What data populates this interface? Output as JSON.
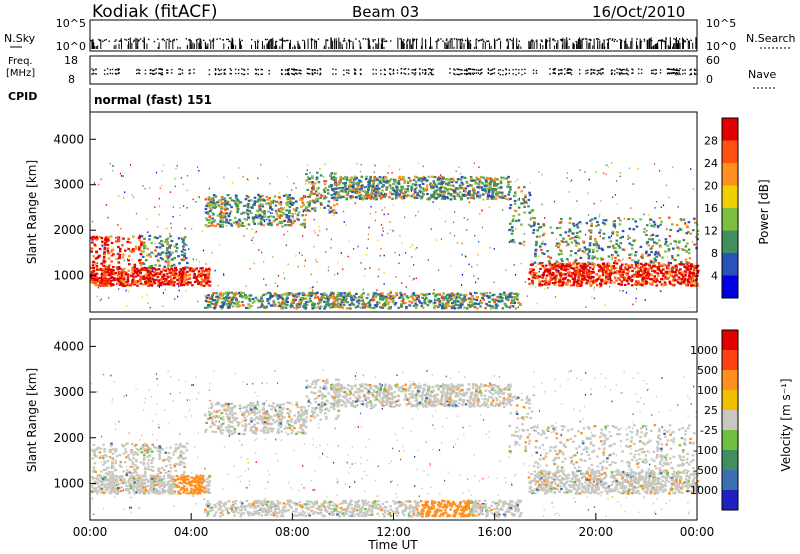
{
  "header": {
    "station": "Kodiak (fitACF)",
    "beam": "Beam 03",
    "date": "16/Oct/2010"
  },
  "top_panels": {
    "nsky": {
      "label": "N.Sky",
      "right_label": "N.Search",
      "ticks_left": [
        "10^5",
        "10^0"
      ],
      "ticks_right": [
        "10^5",
        "10^0"
      ]
    },
    "freq": {
      "label_line1": "Freq.",
      "label_line2": "[MHz]",
      "ticks_left": [
        "18",
        "8"
      ],
      "right_label": "Nave",
      "ticks_right": [
        "60",
        "0"
      ]
    },
    "cpid": {
      "label": "CPID",
      "text": "normal (fast) 151"
    }
  },
  "x_axis": {
    "label": "Time UT",
    "ticks": [
      "00:00",
      "04:00",
      "08:00",
      "12:00",
      "16:00",
      "20:00",
      "00:00"
    ]
  },
  "chart_data": [
    {
      "type": "heatmap",
      "quantity": "Power",
      "ylabel": "Slant Range [km]",
      "y_ticks": [
        "1000",
        "2000",
        "3000",
        "4000"
      ],
      "ylim": [
        200,
        4600
      ],
      "xlim": [
        0,
        24
      ],
      "colorbar": {
        "label": "Power [dB]",
        "ticks": [
          "4",
          "8",
          "12",
          "16",
          "20",
          "24",
          "28"
        ],
        "colors": [
          "#0000e0",
          "#2a52b8",
          "#3f8f60",
          "#7fbf3f",
          "#f0d000",
          "#ff9020",
          "#ff5010",
          "#e00000"
        ]
      },
      "bands": [
        {
          "name": "near-range echoes morning",
          "x": [
            0,
            4.5
          ],
          "y": [
            800,
            1800
          ],
          "level": 28
        },
        {
          "name": "far band",
          "x": [
            4.5,
            16.5
          ],
          "y": [
            2200,
            3200
          ],
          "level": 18
        },
        {
          "name": "evening echoes",
          "x": [
            17.2,
            24
          ],
          "y": [
            800,
            1800
          ],
          "level": 28
        },
        {
          "name": "ground scatter low",
          "x": [
            4.5,
            17
          ],
          "y": [
            300,
            650
          ],
          "level": 12
        }
      ]
    },
    {
      "type": "heatmap",
      "quantity": "Velocity",
      "ylabel": "Slant Range [km]",
      "y_ticks": [
        "1000",
        "2000",
        "3000",
        "4000"
      ],
      "ylim": [
        200,
        4600
      ],
      "xlim": [
        0,
        24
      ],
      "colorbar": {
        "label": "Velocity [m s⁻¹]",
        "ticks": [
          "1000",
          "500",
          "100",
          "25",
          "-25",
          "-100",
          "-500",
          "-1000"
        ],
        "colors": [
          "#2020c0",
          "#3a70b0",
          "#3f8f60",
          "#70c040",
          "#c8c8c0",
          "#f0c000",
          "#ff9020",
          "#ff4010",
          "#e00000"
        ]
      }
    }
  ]
}
